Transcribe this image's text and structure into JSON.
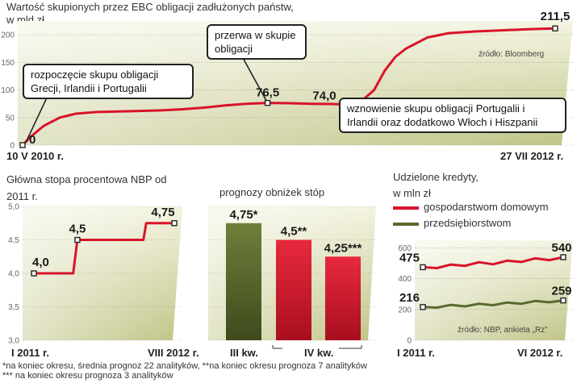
{
  "colors": {
    "accent_red": "#d8142a",
    "dark_olive": "#5b6a2e",
    "bg_light": "#f2f2dc",
    "bg_dark": "#c3c78a"
  },
  "chart_data": [
    {
      "type": "line",
      "title": "Wartość skupionych przez EBC obligacji zadłużonych państw,",
      "subtitle": "w mld zł",
      "ylim": [
        0,
        225
      ],
      "yticks": [
        0,
        50,
        100,
        150,
        200
      ],
      "x_start_label": "10 V 2010 r.",
      "x_end_label": "27 VII 2012 r.",
      "source": "źródło: Bloomberg",
      "series": [
        {
          "name": "Wartość skupionych obligacji",
          "x": [
            0,
            0.015,
            0.04,
            0.07,
            0.1,
            0.14,
            0.18,
            0.22,
            0.26,
            0.3,
            0.34,
            0.38,
            0.42,
            0.46,
            0.5,
            0.54,
            0.58,
            0.6,
            0.63,
            0.66,
            0.68,
            0.7,
            0.72,
            0.74,
            0.76,
            0.8,
            0.85,
            0.9,
            0.95,
            0.98,
            1.0
          ],
          "values": [
            0,
            15,
            35,
            50,
            57,
            60,
            61,
            62,
            63,
            65,
            68,
            72,
            75,
            76.5,
            76,
            75,
            74.5,
            74,
            74.5,
            100,
            135,
            160,
            175,
            185,
            195,
            203,
            206,
            208,
            210,
            211,
            211.5
          ]
        }
      ],
      "point_labels": [
        {
          "x": 0,
          "value": 0,
          "text": "0"
        },
        {
          "x": 0.46,
          "value": 76.5,
          "text": "76,5"
        },
        {
          "x": 0.6,
          "value": 74,
          "text": "74,0"
        },
        {
          "x": 1.0,
          "value": 211.5,
          "text": "211,5"
        }
      ],
      "annotations": [
        "rozpoczęcie skupu obligacji Grecji, Irlandii i Portugalii",
        "przerwa w skupie obligacji",
        "wznowienie skupu obligacji Portugalii i Irlandii oraz dodatkowo Włoch i Hiszpanii"
      ]
    },
    {
      "type": "line",
      "title": "Główna stopa procentowa NBP od 2011 r.",
      "ylim": [
        3.0,
        5.0
      ],
      "yticks": [
        "3,0",
        "3,5",
        "4,0",
        "4,5",
        "5,0"
      ],
      "x_start_label": "I 2011 r.",
      "x_end_label": "VIII 2012 r.",
      "series": [
        {
          "name": "Stopa referencyjna NBP",
          "x": [
            0,
            0.28,
            0.31,
            0.78,
            0.8,
            1.0
          ],
          "values": [
            4.0,
            4.0,
            4.5,
            4.5,
            4.75,
            4.75
          ]
        }
      ],
      "point_labels": [
        {
          "x": 0,
          "value": 4.0,
          "text": "4,0"
        },
        {
          "x": 0.31,
          "value": 4.5,
          "text": "4,5"
        },
        {
          "x": 1.0,
          "value": 4.75,
          "text": "4,75"
        }
      ]
    },
    {
      "type": "bar",
      "title": "prognozy obniżek stóp",
      "ylim": [
        3.0,
        5.0
      ],
      "categories": [
        "III kw.",
        "IV kw.",
        "IV kw."
      ],
      "values": [
        4.75,
        4.5,
        4.25
      ],
      "value_labels": [
        "4,75*",
        "4,5**",
        "4,25***"
      ],
      "group_labels": [
        "III kw.",
        "IV kw."
      ]
    },
    {
      "type": "line",
      "title": "Udzielone kredyty,",
      "subtitle": "w mln zł",
      "ylim": [
        0,
        650
      ],
      "yticks": [
        0,
        200,
        400,
        600
      ],
      "x_start_label": "I 2011 r.",
      "x_end_label": "VI 2012 r.",
      "source": "źródło: NBP, ankieta „Rz”",
      "series": [
        {
          "name": "gospodarstwom domowym",
          "x": [
            0,
            0.1,
            0.2,
            0.3,
            0.4,
            0.5,
            0.6,
            0.7,
            0.8,
            0.9,
            1.0
          ],
          "values": [
            475,
            480,
            485,
            495,
            500,
            505,
            510,
            520,
            525,
            532,
            540
          ]
        },
        {
          "name": "przedsiębiorstwom",
          "x": [
            0,
            0.1,
            0.2,
            0.3,
            0.4,
            0.5,
            0.6,
            0.7,
            0.8,
            0.9,
            1.0
          ],
          "values": [
            216,
            220,
            225,
            228,
            232,
            236,
            240,
            245,
            250,
            255,
            259
          ]
        }
      ],
      "point_labels": [
        {
          "series": 0,
          "x": 0,
          "value": 475,
          "text": "475"
        },
        {
          "series": 0,
          "x": 1.0,
          "value": 540,
          "text": "540"
        },
        {
          "series": 1,
          "x": 0,
          "value": 216,
          "text": "216"
        },
        {
          "series": 1,
          "x": 1.0,
          "value": 259,
          "text": "259"
        }
      ]
    }
  ],
  "footnotes": {
    "line1": "*na koniec okresu, średnia prognoz 22 analityków, **na koniec okresu prognoza 7 analityków",
    "line2": "*** na koniec okresu prognoza 3 analityków"
  }
}
